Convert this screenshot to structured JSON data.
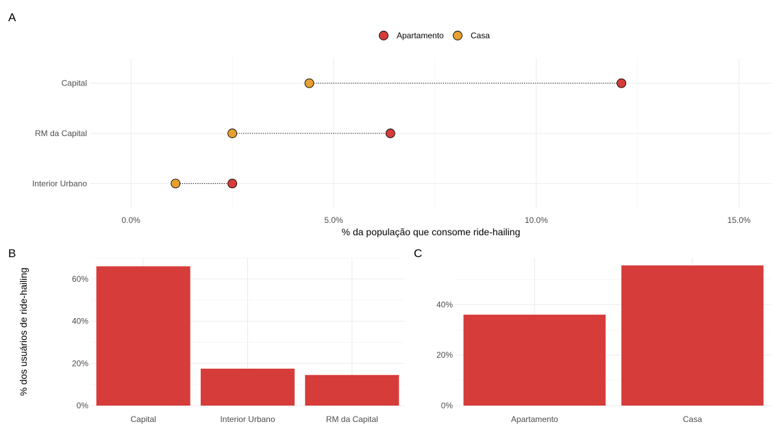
{
  "chart_data": [
    {
      "panel": "A",
      "type": "scatter",
      "subtype": "dumbbell",
      "categories": [
        "Capital",
        "RM da Capital",
        "Interior Urbano"
      ],
      "series": [
        {
          "name": "Apartamento",
          "color": "#d63c3a",
          "values": [
            12.1,
            6.4,
            2.5
          ]
        },
        {
          "name": "Casa",
          "color": "#e8a030",
          "values": [
            4.4,
            2.5,
            1.1
          ]
        }
      ],
      "xlabel": "% da população que consome ride-hailing",
      "xlim": [
        -1.0,
        15.8
      ],
      "xticks": [
        0,
        5,
        10,
        15
      ],
      "xtick_labels": [
        "0.0%",
        "5.0%",
        "10.0%",
        "15.0%"
      ],
      "legend_position": "top",
      "grid": true
    },
    {
      "panel": "B",
      "type": "bar",
      "categories": [
        "Capital",
        "Interior Urbano",
        "RM da Capital"
      ],
      "values": [
        66,
        17.5,
        14.5
      ],
      "ylabel": "% dos usuários de ride-hailing",
      "ylim": [
        0,
        70
      ],
      "yticks": [
        0,
        20,
        40,
        60
      ],
      "ytick_labels": [
        "0%",
        "20%",
        "40%",
        "60%"
      ],
      "color": "#d63c3a",
      "grid": true
    },
    {
      "panel": "C",
      "type": "bar",
      "categories": [
        "Apartamento",
        "Casa"
      ],
      "values": [
        36,
        55.5
      ],
      "ylim": [
        0,
        58.5
      ],
      "yticks": [
        0,
        20,
        40
      ],
      "ytick_labels": [
        "0%",
        "20%",
        "40%"
      ],
      "color": "#d63c3a",
      "grid": true
    }
  ]
}
